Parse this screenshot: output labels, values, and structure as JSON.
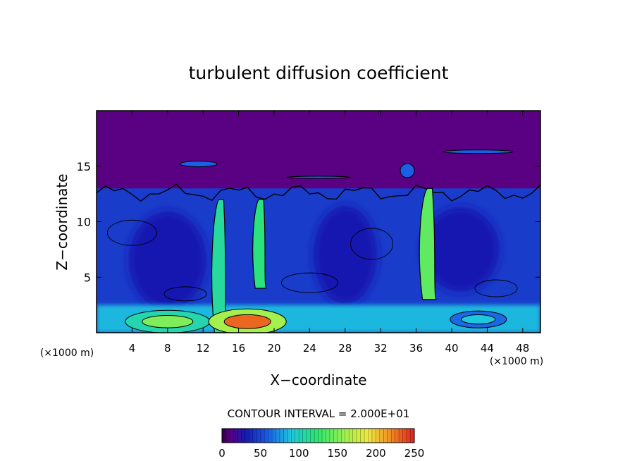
{
  "chart_data": {
    "type": "heatmap",
    "title": "turbulent diffusion coefficient",
    "xlabel": "X−coordinate",
    "ylabel": "Z−coordinate",
    "x_unit_label": "(×1000 m)",
    "z_unit_label": "(×1000 m)",
    "xlim": [
      0,
      50
    ],
    "ylim": [
      0,
      20
    ],
    "x_ticks": [
      4,
      8,
      12,
      16,
      20,
      24,
      28,
      32,
      36,
      40,
      44,
      48
    ],
    "y_ticks": [
      5,
      10,
      15
    ],
    "contour_interval_text": "CONTOUR INTERVAL = 2.000E+01",
    "colorbar": {
      "min": 0,
      "max": 250,
      "ticks": [
        0,
        50,
        100,
        150,
        200,
        250
      ],
      "stops": [
        {
          "value": 0,
          "color": "#2a003c"
        },
        {
          "value": 10,
          "color": "#5a0082"
        },
        {
          "value": 30,
          "color": "#1818b0"
        },
        {
          "value": 60,
          "color": "#1b5fe6"
        },
        {
          "value": 90,
          "color": "#1ec8dc"
        },
        {
          "value": 125,
          "color": "#2ee66e"
        },
        {
          "value": 160,
          "color": "#a0f050"
        },
        {
          "value": 190,
          "color": "#f0e840"
        },
        {
          "value": 220,
          "color": "#f08a20"
        },
        {
          "value": 250,
          "color": "#e02020"
        }
      ]
    },
    "background_value": 5,
    "features": [
      {
        "name": "upper stable layer (purple)",
        "region": "z > 13",
        "value": 5
      },
      {
        "name": "turbulent layer base",
        "region": "z < 13",
        "value": 45
      },
      {
        "name": "plume 1",
        "x": 14,
        "z": [
          0,
          12
        ],
        "value": 110
      },
      {
        "name": "plume 2",
        "x": 18.5,
        "z": [
          4,
          12
        ],
        "value": 120
      },
      {
        "name": "plume 3",
        "x": 37.5,
        "z": [
          3,
          13
        ],
        "value": 140
      },
      {
        "name": "surface maximum",
        "x": 17,
        "z": 1,
        "value": 230
      },
      {
        "name": "surface patch west",
        "x": 8,
        "z": 1,
        "value": 150
      },
      {
        "name": "surface patch east",
        "x": 43,
        "z": 1.2,
        "value": 90
      }
    ]
  }
}
